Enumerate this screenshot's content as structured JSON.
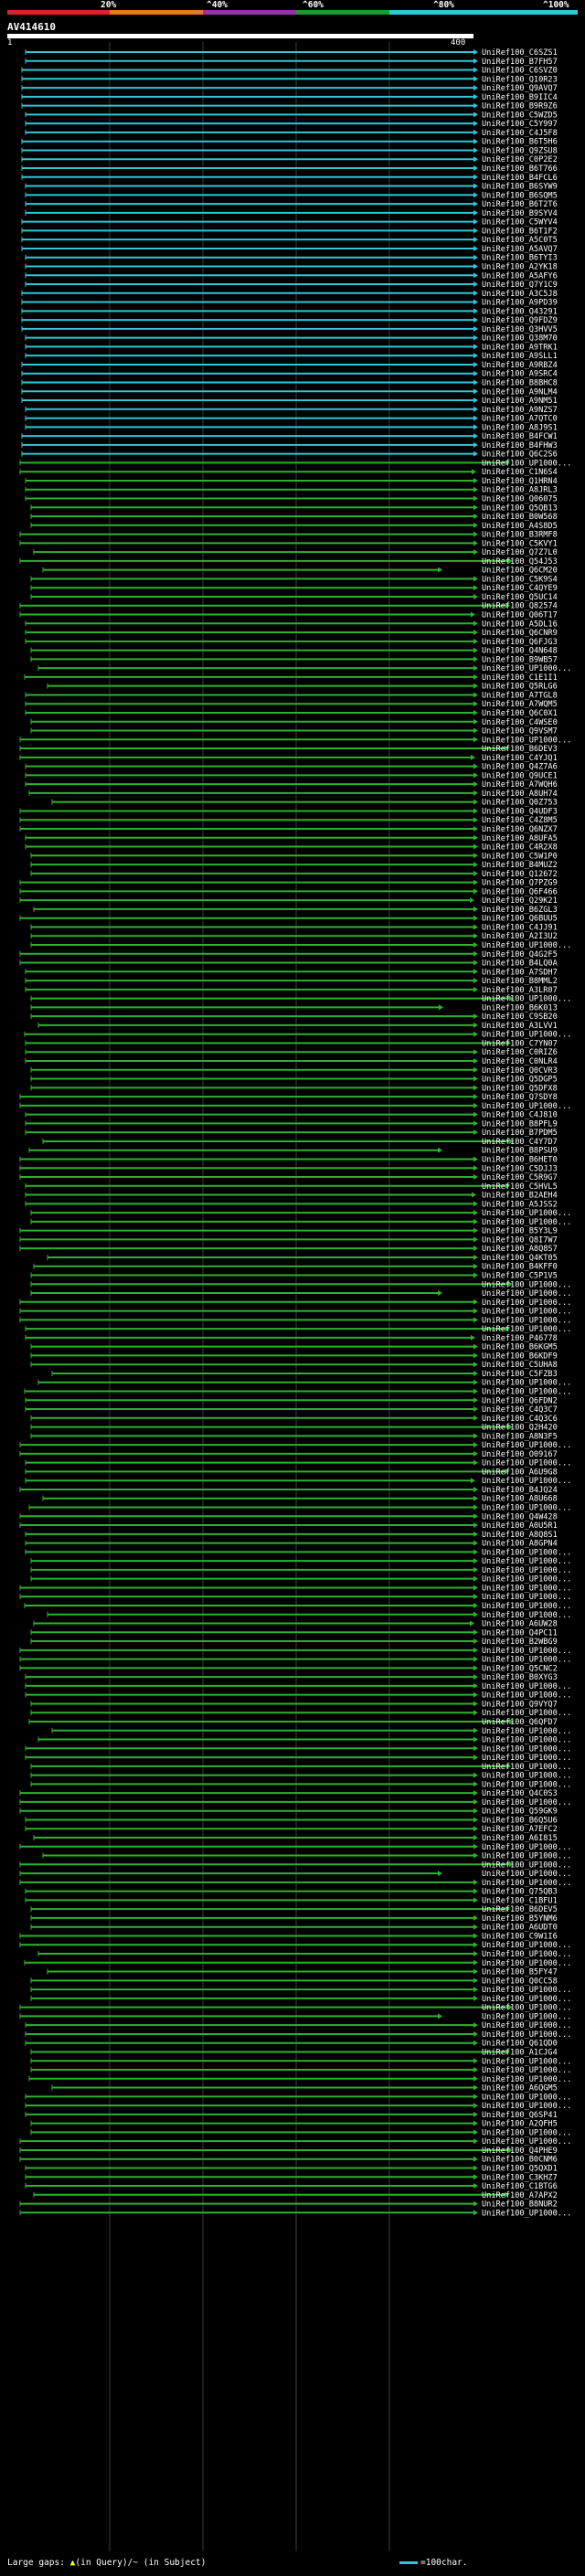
{
  "header": {
    "percent_marks": [
      "20%",
      "^40%",
      "^60%",
      "^80%",
      "^100%"
    ],
    "color_scale": [
      "#e0202a",
      "#e07c1e",
      "#9b2fb0",
      "#1b9c2a",
      "#2fc7d8"
    ]
  },
  "query": {
    "name": "AV414610",
    "start": "1",
    "end": "400"
  },
  "colors": {
    "cyan": "#2fc7d8",
    "green": "#2db22d",
    "gridline": "#3c3c3c",
    "label": "#ffffff"
  },
  "hits": [
    "UniRef100_C6SZS1",
    "UniRef100_B7FH57",
    "UniRef100_C6SVZ0",
    "UniRef100_Q10R23",
    "UniRef100_Q9AVQ7",
    "UniRef100_B9IIC4",
    "UniRef100_B9R9Z6",
    "UniRef100_C5WZD5",
    "UniRef100_C5Y997",
    "UniRef100_C4J5F8",
    "UniRef100_B6T5H6",
    "UniRef100_Q9ZSU8",
    "UniRef100_C0P2E2",
    "UniRef100_B6T766",
    "UniRef100_B4FCL6",
    "UniRef100_B6SYW9",
    "UniRef100_B6SQM5",
    "UniRef100_B6T2T6",
    "UniRef100_B9SYV4",
    "UniRef100_C5WYV4",
    "UniRef100_B6T1F2",
    "UniRef100_A5C0T5",
    "UniRef100_A5AVQ7",
    "UniRef100_B6TYI3",
    "UniRef100_A2YK18",
    "UniRef100_A5AFY6",
    "UniRef100_Q7Y1C9",
    "UniRef100_A3C5J8",
    "UniRef100_A9PD39",
    "UniRef100_Q43291",
    "UniRef100_Q9FDZ9",
    "UniRef100_Q3HVV5",
    "UniRef100_Q38M70",
    "UniRef100_A9TRK1",
    "UniRef100_A9SLL1",
    "UniRef100_A9RBZ4",
    "UniRef100_A9SRC4",
    "UniRef100_B8BHC8",
    "UniRef100_A9NLM4",
    "UniRef100_A9NM51",
    "UniRef100_A9NZS7",
    "UniRef100_A7QTC0",
    "UniRef100_A8J9S1",
    "UniRef100_B4FCW1",
    "UniRef100_B4FHW3",
    "UniRef100_Q6C2S6",
    "UniRef100_UP1000...",
    "UniRef100_C1N6S4",
    "UniRef100_Q1HRN4",
    "UniRef100_A8JRL3",
    "UniRef100_Q06075",
    "UniRef100_Q5QB13",
    "UniRef100_B0W568",
    "UniRef100_A4S8D5",
    "UniRef100_B3RMF8",
    "UniRef100_C5KVY1",
    "UniRef100_Q7Z7L0",
    "UniRef100_Q54J53",
    "UniRef100_Q6CM20",
    "UniRef100_C5K9S4",
    "UniRef100_C4QYE9",
    "UniRef100_Q5UC14",
    "UniRef100_Q82574",
    "UniRef100_Q06T17",
    "UniRef100_A5DL16",
    "UniRef100_Q6CNR9",
    "UniRef100_Q6FJG3",
    "UniRef100_Q4N648",
    "UniRef100_B9WB57",
    "UniRef100_UP1000...",
    "UniRef100_C1E1I1",
    "UniRef100_Q5RLG6",
    "UniRef100_A7TGL8",
    "UniRef100_A7WQM5",
    "UniRef100_Q6C0X1",
    "UniRef100_C4WSE0",
    "UniRef100_Q9VSM7",
    "UniRef100_UP1000...",
    "UniRef100_B6DEV3",
    "UniRef100_C4YJQ1",
    "UniRef100_Q4Z7A6",
    "UniRef100_Q9UCE1",
    "UniRef100_A7WQH6",
    "UniRef100_A8UH74",
    "UniRef100_Q0Z753",
    "UniRef100_Q4UDF3",
    "UniRef100_C4Z8M5",
    "UniRef100_Q6NZX7",
    "UniRef100_A8UFA5",
    "UniRef100_C4R2X8",
    "UniRef100_C5W1P0",
    "UniRef100_B4MUZ2",
    "UniRef100_Q12672",
    "UniRef100_Q7PZG9",
    "UniRef100_Q6F466",
    "UniRef100_Q29K21",
    "UniRef100_B6ZGL3",
    "UniRef100_Q6BUU5",
    "UniRef100_C4JJ91",
    "UniRef100_A2I3U2",
    "UniRef100_UP1000...",
    "UniRef100_Q4G2F5",
    "UniRef100_B4LQ0A",
    "UniRef100_A7SDH7",
    "UniRef100_B8MML2",
    "UniRef100_A3LR07",
    "UniRef100_UP1000...",
    "UniRef100_B6K013",
    "UniRef100_C9SB20",
    "UniRef100_A3LVV1",
    "UniRef100_UP1000...",
    "UniRef100_C7YN07",
    "UniRef100_C0RIZ6",
    "UniRef100_C0NLR4",
    "UniRef100_Q0CVR3",
    "UniRef100_Q5DGP5",
    "UniRef100_Q5DFX8",
    "UniRef100_Q7SDY8",
    "UniRef100_UP1000...",
    "UniRef100_C4J810",
    "UniRef100_B8PFL9",
    "UniRef100_B7PDM5",
    "UniRef100_C4Y7D7",
    "UniRef100_B8PSU9",
    "UniRef100_B6HET0",
    "UniRef100_C5DJJ3",
    "UniRef100_C5R9G7",
    "UniRef100_C5HVL5",
    "UniRef100_B2AEH4",
    "UniRef100_A5JSS2",
    "UniRef100_UP1000...",
    "UniRef100_UP1000...",
    "UniRef100_B5Y3L9",
    "UniRef100_Q8I7W7",
    "UniRef100_A8Q8S7",
    "UniRef100_Q4KT05",
    "UniRef100_B4KFF0",
    "UniRef100_C5P1V5",
    "UniRef100_UP1000...",
    "UniRef100_UP1000...",
    "UniRef100_UP1000...",
    "UniRef100_UP1000...",
    "UniRef100_UP1000...",
    "UniRef100_UP1000...",
    "UniRef100_P46778",
    "UniRef100_B6KGM5",
    "UniRef100_B6KDF9",
    "UniRef100_C5UHA8",
    "UniRef100_C5FZB3",
    "UniRef100_UP1000...",
    "UniRef100_UP1000...",
    "UniRef100_Q6FDN2",
    "UniRef100_C4Q3C7",
    "UniRef100_C4Q3C6",
    "UniRef100_Q2H420",
    "UniRef100_A8N3F5",
    "UniRef100_UP1000...",
    "UniRef100_O09167",
    "UniRef100_UP1000...",
    "UniRef100_A6U9G8",
    "UniRef100_UP1000...",
    "UniRef100_B4JQ24",
    "UniRef100_A8U668",
    "UniRef100_UP1000...",
    "UniRef100_Q4W428",
    "UniRef100_A0U5R1",
    "UniRef100_A8Q8S1",
    "UniRef100_A8GPN4",
    "UniRef100_UP1000...",
    "UniRef100_UP1000...",
    "UniRef100_UP1000...",
    "UniRef100_UP1000...",
    "UniRef100_UP1000...",
    "UniRef100_UP1000...",
    "UniRef100_UP1000...",
    "UniRef100_UP1000...",
    "UniRef100_A6UW28",
    "UniRef100_Q4PC11",
    "UniRef100_B2WBG9",
    "UniRef100_UP1000...",
    "UniRef100_UP1000...",
    "UniRef100_Q5CNC2",
    "UniRef100_B0XYG3",
    "UniRef100_UP1000...",
    "UniRef100_UP1000...",
    "UniRef100_Q9VYQ7",
    "UniRef100_UP1000...",
    "UniRef100_Q6QFD7",
    "UniRef100_UP1000...",
    "UniRef100_UP1000...",
    "UniRef100_UP1000...",
    "UniRef100_UP1000...",
    "UniRef100_UP1000...",
    "UniRef100_UP1000...",
    "UniRef100_UP1000...",
    "UniRef100_Q4C0S3",
    "UniRef100_UP1000...",
    "UniRef100_Q59GK9",
    "UniRef100_B6Q5U6",
    "UniRef100_A7EFC2",
    "UniRef100_A6I815",
    "UniRef100_UP1000...",
    "UniRef100_UP1000...",
    "UniRef100_UP1000...",
    "UniRef100_UP1000...",
    "UniRef100_UP1000...",
    "UniRef100_Q75QB3",
    "UniRef100_C1BFU1",
    "UniRef100_B6DEV5",
    "UniRef100_B5YNM6",
    "UniRef100_A6UDT0",
    "UniRef100_C9W1I6",
    "UniRef100_UP1000...",
    "UniRef100_UP1000...",
    "UniRef100_UP1000...",
    "UniRef100_B5FY47",
    "UniRef100_Q0CC58",
    "UniRef100_UP1000...",
    "UniRef100_UP1000...",
    "UniRef100_UP1000...",
    "UniRef100_UP1000...",
    "UniRef100_UP1000...",
    "UniRef100_UP1000...",
    "UniRef100_Q61QD0",
    "UniRef100_A1CJG4",
    "UniRef100_UP1000...",
    "UniRef100_UP1000...",
    "UniRef100_UP1000...",
    "UniRef100_A6QGM5",
    "UniRef100_UP1000...",
    "UniRef100_UP1000...",
    "UniRef100_Q6SP41",
    "UniRef100_A2QFH5",
    "UniRef100_UP1000...",
    "UniRef100_UP1000...",
    "UniRef100_Q4PHE9",
    "UniRef100_B0CNM6",
    "UniRef100_Q5QXD1",
    "UniRef100_C3KHZ7",
    "UniRef100_C1BTG6",
    "UniRef100_A7APX2",
    "UniRef100_B8NUR2",
    "UniRef100_UP1000..."
  ],
  "legend": {
    "prefix": "Large gaps: ",
    "query_gap_symbol": "▲",
    "query_gap_text": "(in Query)",
    "subject_gap_text": "/~ (in Subject)",
    "scale_label": "=100char."
  }
}
